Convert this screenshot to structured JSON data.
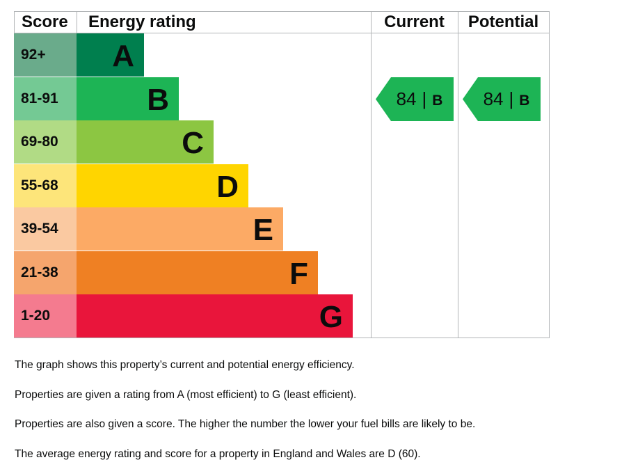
{
  "chart_data": {
    "type": "bar",
    "headers": {
      "score": "Score",
      "rating": "Energy rating",
      "current": "Current",
      "potential": "Potential"
    },
    "bands": [
      {
        "score_range": "92+",
        "letter": "A",
        "score_bg": "#6aab8b",
        "bar_color": "#007f4e"
      },
      {
        "score_range": "81-91",
        "letter": "B",
        "score_bg": "#74c994",
        "bar_color": "#1db455"
      },
      {
        "score_range": "69-80",
        "letter": "C",
        "score_bg": "#b1db85",
        "bar_color": "#8cc642"
      },
      {
        "score_range": "55-68",
        "letter": "D",
        "score_bg": "#fde57a",
        "bar_color": "#ffd500"
      },
      {
        "score_range": "39-54",
        "letter": "E",
        "score_bg": "#fac9a1",
        "bar_color": "#fcaa65"
      },
      {
        "score_range": "21-38",
        "letter": "F",
        "score_bg": "#f5a56d",
        "bar_color": "#ef8023"
      },
      {
        "score_range": "1-20",
        "letter": "G",
        "score_bg": "#f47b8f",
        "bar_color": "#e9153b"
      }
    ],
    "current": {
      "score": "84",
      "separator": "|",
      "letter": "B",
      "color": "#1db455"
    },
    "potential": {
      "score": "84",
      "separator": "|",
      "letter": "B",
      "color": "#1db455"
    }
  },
  "notes": [
    "The graph shows this property’s current and potential energy efficiency.",
    "Properties are given a rating from A (most efficient) to G (least efficient).",
    "Properties are also given a score. The higher the number the lower your fuel bills are likely to be.",
    "The average energy rating and score for a property in England and Wales are D (60)."
  ]
}
